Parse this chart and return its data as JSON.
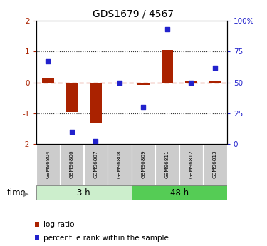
{
  "title": "GDS1679 / 4567",
  "samples": [
    "GSM96804",
    "GSM96806",
    "GSM96807",
    "GSM96808",
    "GSM96809",
    "GSM96811",
    "GSM96812",
    "GSM96813"
  ],
  "log_ratio": [
    0.15,
    -0.95,
    -1.3,
    0.0,
    -0.08,
    1.05,
    0.05,
    0.05
  ],
  "percentile_rank": [
    67,
    10,
    2,
    50,
    30,
    93,
    50,
    62
  ],
  "groups": [
    {
      "label": "3 h",
      "start": 0,
      "end": 3,
      "color_light": "#cceecc",
      "color_dark": "#55cc55"
    },
    {
      "label": "48 h",
      "start": 4,
      "end": 7,
      "color_light": "#55cc55",
      "color_dark": "#22aa22"
    }
  ],
  "ylim_left": [
    -2,
    2
  ],
  "ylim_right": [
    0,
    100
  ],
  "yticks_left": [
    -2,
    -1,
    0,
    1,
    2
  ],
  "ytick_labels_left": [
    "-2",
    "-1",
    "0",
    "1",
    "2"
  ],
  "yticks_right": [
    0,
    25,
    50,
    75,
    100
  ],
  "ytick_labels_right": [
    "0",
    "25",
    "50",
    "75",
    "100%"
  ],
  "bar_color": "#aa2200",
  "dot_color": "#2222cc",
  "hline0_color": "#cc2200",
  "hline_dot_color": "#333333",
  "sample_box_color": "#cccccc",
  "legend_items": [
    {
      "label": "log ratio",
      "color": "#aa2200"
    },
    {
      "label": "percentile rank within the sample",
      "color": "#2222cc"
    }
  ],
  "time_label": "time"
}
